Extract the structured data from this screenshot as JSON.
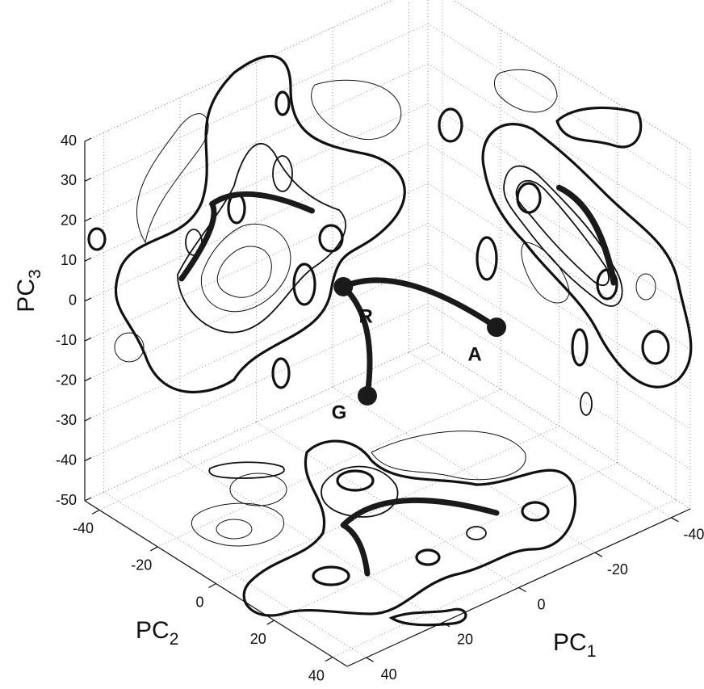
{
  "chart_data": {
    "type": "scatter3d",
    "xlabel": [
      "PC",
      "1"
    ],
    "ylabel": [
      "PC",
      "2"
    ],
    "zlabel": [
      "PC",
      "3"
    ],
    "xlim": [
      -45,
      45
    ],
    "xticks": [
      -40,
      -20,
      0,
      20,
      40
    ],
    "ylim": [
      -45,
      45
    ],
    "yticks": [
      -40,
      -20,
      0,
      20,
      40
    ],
    "zlim": [
      -50,
      40
    ],
    "zticks": [
      -50,
      -40,
      -30,
      -20,
      -10,
      0,
      10,
      20,
      30,
      40
    ],
    "points": {
      "labels": [
        "R",
        "A",
        "G"
      ],
      "x": [
        11.6,
        -14.6,
        19.6
      ],
      "y": [
        0,
        18.3,
        18.7
      ],
      "z": [
        9.7,
        -3.5,
        -5.5
      ]
    },
    "grid": true,
    "color": "#1a1a1a"
  }
}
